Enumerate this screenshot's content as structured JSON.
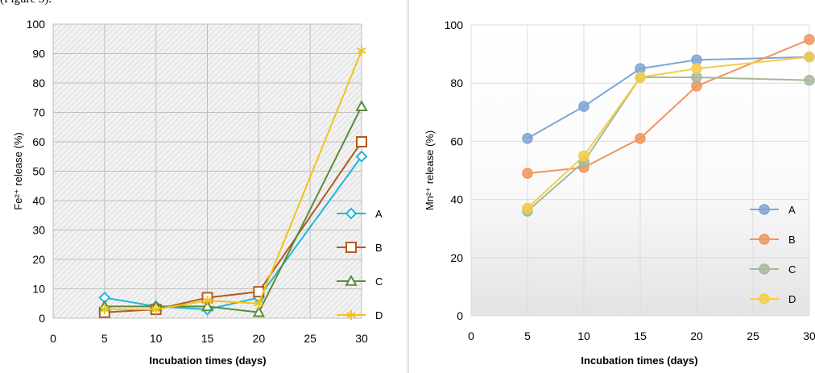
{
  "caption_fragment": "(Figure 3).",
  "chart_data": [
    {
      "type": "line",
      "ylabel": "Fe²⁺ release (%)",
      "xlabel": "Incubation times (days)",
      "xlim": [
        0,
        30
      ],
      "ylim": [
        0,
        100
      ],
      "x_ticks": [
        "0",
        "5",
        "10",
        "15",
        "20",
        "25",
        "30"
      ],
      "y_ticks": [
        "0",
        "10",
        "20",
        "30",
        "40",
        "50",
        "60",
        "70",
        "80",
        "90",
        "100"
      ],
      "background": "hatched",
      "legend_position": "right",
      "x": [
        5,
        10,
        15,
        20,
        30
      ],
      "series": [
        {
          "name": "A",
          "color": "#1fb7d9",
          "marker": "diamond",
          "values": [
            7,
            4,
            3,
            7,
            55
          ]
        },
        {
          "name": "B",
          "color": "#b35a1f",
          "marker": "square",
          "values": [
            2,
            3,
            7,
            9,
            60
          ]
        },
        {
          "name": "C",
          "color": "#5b8a3a",
          "marker": "triangle",
          "values": [
            4,
            4,
            4,
            2,
            72
          ]
        },
        {
          "name": "D",
          "color": "#f0c419",
          "marker": "star",
          "values": [
            3,
            3,
            6,
            5,
            91
          ]
        }
      ]
    },
    {
      "type": "line",
      "ylabel": "Mn²⁺ release (%)",
      "xlabel": "Incubation times (days)",
      "xlim": [
        0,
        30
      ],
      "ylim": [
        0,
        100
      ],
      "x_ticks": [
        "0",
        "5",
        "10",
        "15",
        "20",
        "25",
        "30"
      ],
      "y_ticks": [
        "0",
        "20",
        "40",
        "60",
        "80",
        "100"
      ],
      "background": "gradient",
      "legend_position": "right",
      "x": [
        5,
        10,
        15,
        20,
        30
      ],
      "series": [
        {
          "name": "A",
          "color": "#7fa4d4",
          "marker": "circle",
          "values": [
            61,
            72,
            85,
            88,
            89
          ]
        },
        {
          "name": "B",
          "color": "#f0955e",
          "marker": "circle",
          "values": [
            49,
            51,
            61,
            79,
            95
          ]
        },
        {
          "name": "C",
          "color": "#a7b89a",
          "marker": "circle",
          "values": [
            36,
            53,
            82,
            82,
            81
          ]
        },
        {
          "name": "D",
          "color": "#f4cd4a",
          "marker": "circle",
          "values": [
            37,
            55,
            82,
            85,
            89
          ]
        }
      ]
    }
  ]
}
